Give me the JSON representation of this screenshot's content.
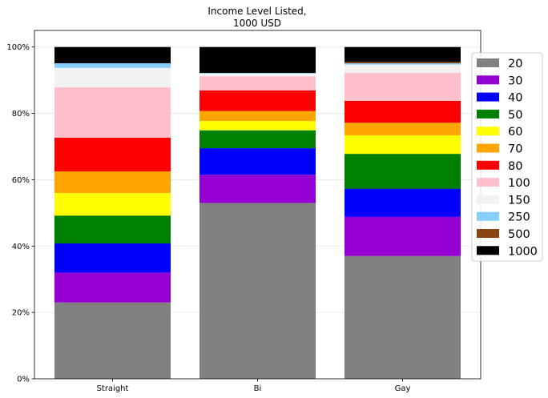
{
  "chart_data": {
    "type": "bar",
    "stacked": true,
    "normalized_percent": true,
    "title": "Income Level Listed,\n1000 USD",
    "categories": [
      "Straight",
      "Bi",
      "Gay"
    ],
    "ylim": [
      0,
      105
    ],
    "ytick_values": [
      0,
      20,
      40,
      60,
      80,
      100
    ],
    "ytick_labels": [
      "0%",
      "20%",
      "40%",
      "60%",
      "80%",
      "100%"
    ],
    "grid": true,
    "legend_position": "right",
    "series": [
      {
        "name": "20",
        "color": "#808080",
        "values": [
          23.0,
          53.0,
          37.0
        ]
      },
      {
        "name": "30",
        "color": "#9400d3",
        "values": [
          9.0,
          8.5,
          11.8
        ]
      },
      {
        "name": "40",
        "color": "#0000ff",
        "values": [
          8.8,
          8.0,
          8.5
        ]
      },
      {
        "name": "50",
        "color": "#008000",
        "values": [
          8.4,
          5.4,
          10.5
        ]
      },
      {
        "name": "60",
        "color": "#ffff00",
        "values": [
          6.8,
          2.8,
          5.6
        ]
      },
      {
        "name": "70",
        "color": "#ffa500",
        "values": [
          6.5,
          3.0,
          3.8
        ]
      },
      {
        "name": "80",
        "color": "#ff0000",
        "values": [
          10.2,
          6.2,
          6.6
        ]
      },
      {
        "name": "100",
        "color": "#ffc0cb",
        "values": [
          15.2,
          4.3,
          8.4
        ]
      },
      {
        "name": "150",
        "color": "#f2f2f2",
        "values": [
          5.8,
          0.8,
          2.5
        ]
      },
      {
        "name": "250",
        "color": "#87cefa",
        "values": [
          1.4,
          0.2,
          0.4
        ]
      },
      {
        "name": "500",
        "color": "#8b4513",
        "values": [
          0.0,
          0.0,
          0.4
        ]
      },
      {
        "name": "1000",
        "color": "#000000",
        "values": [
          4.9,
          7.8,
          4.5
        ]
      }
    ]
  }
}
